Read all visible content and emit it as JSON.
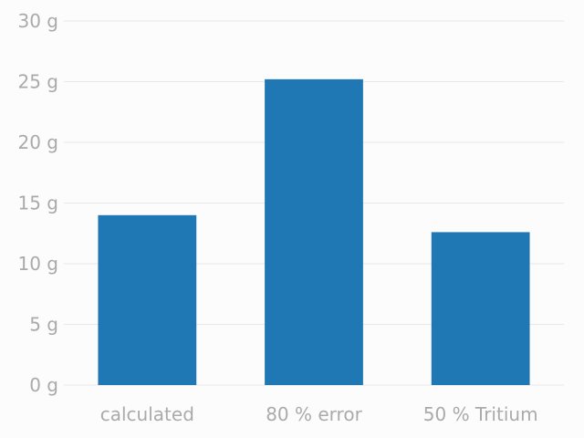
{
  "chart_data": {
    "type": "bar",
    "categories": [
      "calculated",
      "80 % error",
      "50 % Tritium"
    ],
    "values": [
      14.0,
      25.2,
      12.6
    ],
    "title": "",
    "xlabel": "",
    "ylabel": "",
    "ylim": [
      0,
      30
    ],
    "yticks": [
      0,
      5,
      10,
      15,
      20,
      25,
      30
    ],
    "ytick_labels": [
      "0 g",
      "5 g",
      "10 g",
      "15 g",
      "20 g",
      "25 g",
      "30 g"
    ],
    "grid": "horizontal",
    "bar_color": "#1f77b4",
    "tick_color": "#aaaaaa",
    "grid_color": "#e8e8e8",
    "background": "#fcfcfc"
  }
}
